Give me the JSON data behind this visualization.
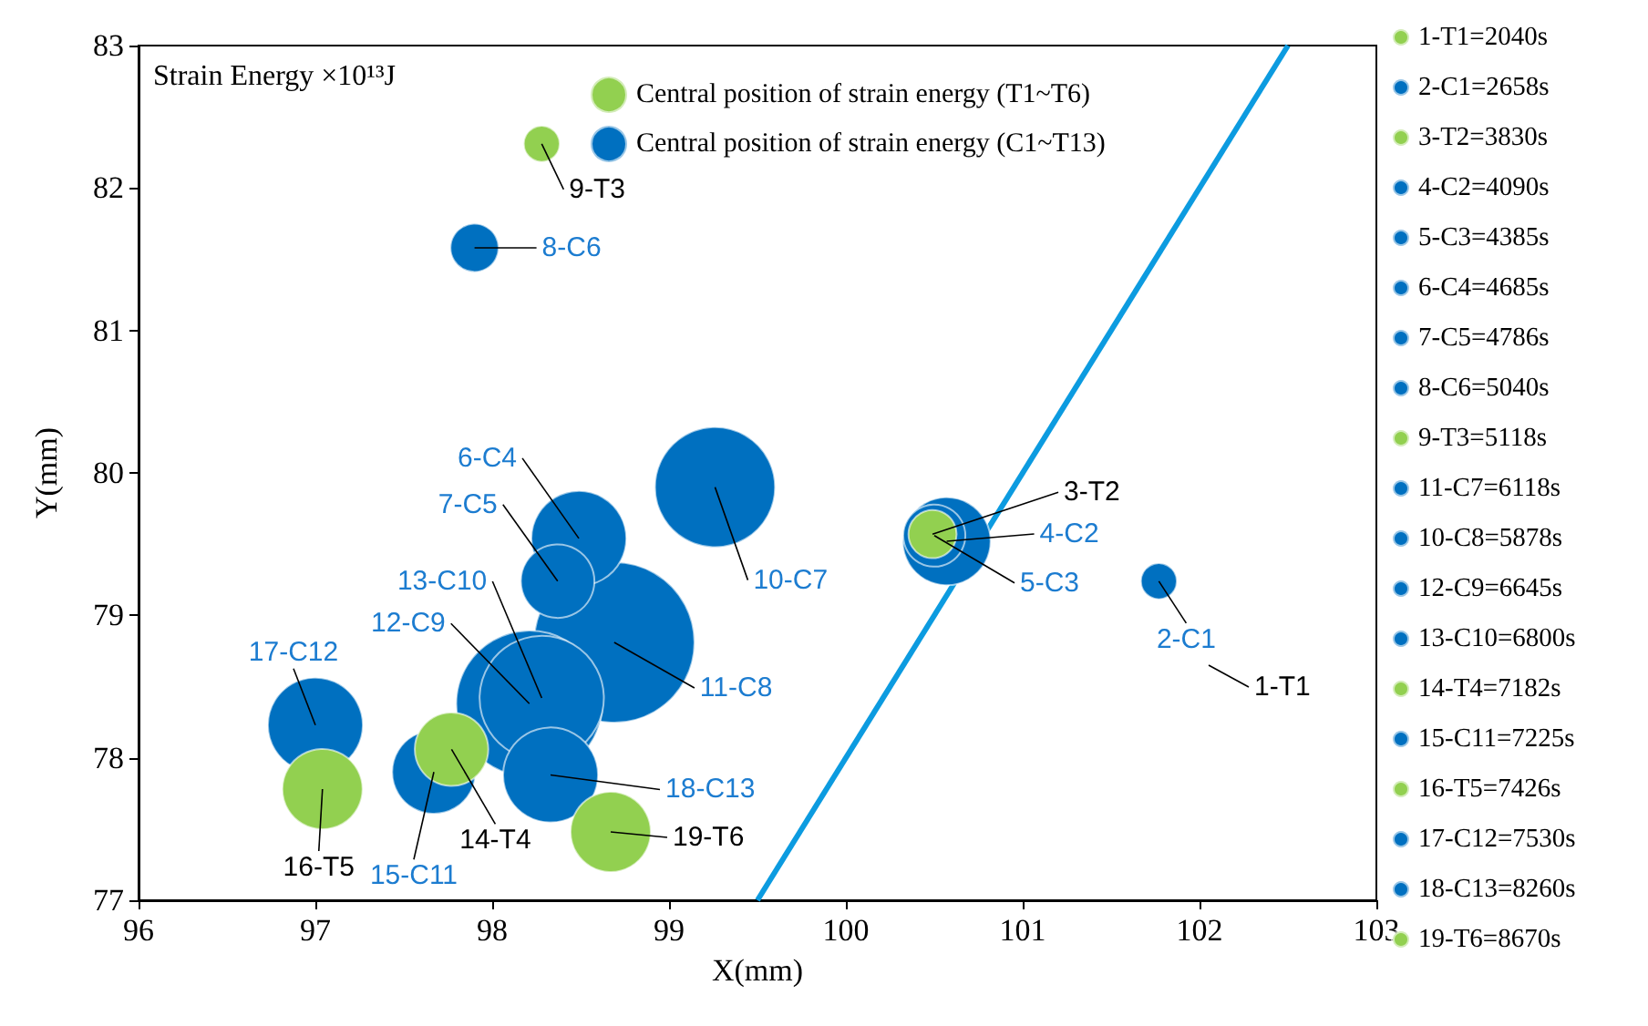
{
  "chart_data": {
    "type": "bubble",
    "xlabel": "X(mm)",
    "ylabel": "Y(mm)",
    "xlim": [
      96,
      103
    ],
    "xticks": [
      96,
      97,
      98,
      99,
      100,
      101,
      102,
      103
    ],
    "ylim": [
      77,
      83
    ],
    "yticks": [
      77,
      78,
      79,
      80,
      81,
      82,
      83
    ],
    "grid": false,
    "legend": "right",
    "series": [
      {
        "name": "1-T1=2040s",
        "color": "#92d050"
      },
      {
        "name": "2-C1=2658s",
        "color": "#0070c0",
        "x": [
          101.77
        ],
        "values": [
          79.24
        ],
        "sizes": [
          0.05
        ]
      },
      {
        "name": "3-T2=3830s",
        "color": "#92d050",
        "x": [
          100.49
        ],
        "values": [
          79.57
        ],
        "sizes": [
          0.09
        ]
      },
      {
        "name": "4-C2=4090s",
        "color": "#0070c0",
        "x": [
          100.57
        ],
        "values": [
          79.52
        ],
        "sizes": [
          0.3
        ]
      },
      {
        "name": "5-C3=4385s",
        "color": "#0070c0",
        "x": [
          100.5
        ],
        "values": [
          79.56
        ],
        "sizes": [
          0.15
        ]
      },
      {
        "name": "6-C4=4685s",
        "color": "#0070c0",
        "x": [
          98.49
        ],
        "values": [
          79.54
        ],
        "sizes": [
          0.35
        ]
      },
      {
        "name": "7-C5=4786s",
        "color": "#0070c0",
        "x": [
          98.37
        ],
        "values": [
          79.24
        ],
        "sizes": [
          0.21
        ]
      },
      {
        "name": "8-C6=5040s",
        "color": "#0070c0",
        "x": [
          97.9
        ],
        "values": [
          81.58
        ],
        "sizes": [
          0.09
        ]
      },
      {
        "name": "9-T3=5118s",
        "color": "#92d050",
        "x": [
          98.28
        ],
        "values": [
          82.31
        ],
        "sizes": [
          0.05
        ]
      },
      {
        "name": "11-C7=6118s",
        "color": "#0070c0",
        "x": [
          99.26
        ],
        "values": [
          79.9
        ],
        "sizes": [
          0.56
        ]
      },
      {
        "name": "10-C8=5878s",
        "color": "#0070c0",
        "x": [
          98.69
        ],
        "values": [
          78.81
        ],
        "sizes": [
          1
        ]
      },
      {
        "name": "12-C9=6645s",
        "color": "#0070c0",
        "x": [
          98.21
        ],
        "values": [
          78.38
        ],
        "sizes": [
          0.83
        ]
      },
      {
        "name": "13-C10=6800s",
        "color": "#0070c0",
        "x": [
          98.28
        ],
        "values": [
          78.42
        ],
        "sizes": [
          0.6
        ]
      },
      {
        "name": "14-T4=7182s",
        "color": "#92d050",
        "x": [
          97.77
        ],
        "values": [
          78.06
        ],
        "sizes": [
          0.21
        ]
      },
      {
        "name": "15-C11=7225s",
        "color": "#0070c0",
        "x": [
          97.67
        ],
        "values": [
          77.9
        ],
        "sizes": [
          0.27
        ]
      },
      {
        "name": "16-T5=7426s",
        "color": "#92d050",
        "x": [
          97.04
        ],
        "values": [
          77.78
        ],
        "sizes": [
          0.25
        ]
      },
      {
        "name": "17-C12=7530s",
        "color": "#0070c0",
        "x": [
          97.0
        ],
        "values": [
          78.23
        ],
        "sizes": [
          0.35
        ]
      },
      {
        "name": "18-C13=8260s",
        "color": "#0070c0",
        "x": [
          98.33
        ],
        "values": [
          77.88
        ],
        "sizes": [
          0.35
        ]
      },
      {
        "name": "19-T6=8670s",
        "color": "#92d050",
        "x": [
          98.67
        ],
        "values": [
          77.48
        ],
        "sizes": [
          0.25
        ]
      },
      {
        "name": "Central position of strain energy (T1~T6)",
        "color": "#92d050"
      },
      {
        "name": "Central position of strain energy (C1~T13)",
        "color": "#0070c0"
      },
      {
        "type": "line",
        "color": "#0c9be0",
        "x": [
          99.5,
          102.5
        ],
        "values": [
          77,
          83
        ]
      }
    ],
    "annotations": [
      "Strain Energy ×10¹³J",
      "1-T1",
      {
        "text": "2-C1",
        "x": 101.77,
        "y": 79.24
      },
      {
        "text": "3-T2",
        "x": 100.49,
        "y": 79.57
      },
      {
        "text": "4-C2",
        "x": 100.57,
        "y": 79.52
      },
      {
        "text": "5-C3",
        "x": 100.5,
        "y": 79.56
      },
      {
        "text": "6-C4",
        "x": 98.49,
        "y": 79.54
      },
      {
        "text": "7-C5",
        "x": 98.37,
        "y": 79.24
      },
      {
        "text": "8-C6",
        "x": 97.9,
        "y": 81.58
      },
      {
        "text": "9-T3",
        "x": 98.28,
        "y": 82.31
      },
      {
        "text": "10-C7",
        "x": 99.26,
        "y": 79.9
      },
      {
        "text": "11-C8",
        "x": 98.69,
        "y": 78.81
      },
      {
        "text": "12-C9",
        "x": 98.21,
        "y": 78.38
      },
      {
        "text": "13-C10",
        "x": 98.28,
        "y": 78.42
      },
      {
        "text": "14-T4",
        "x": 97.77,
        "y": 78.06
      },
      {
        "text": "15-C11",
        "x": 97.67,
        "y": 77.9
      },
      {
        "text": "16-T5",
        "x": 97.04,
        "y": 77.78
      },
      {
        "text": "17-C12",
        "x": 97.0,
        "y": 78.23
      },
      {
        "text": "18-C13",
        "x": 98.33,
        "y": 77.88
      },
      {
        "text": "19-T6",
        "x": 98.67,
        "y": 77.48
      }
    ]
  }
}
